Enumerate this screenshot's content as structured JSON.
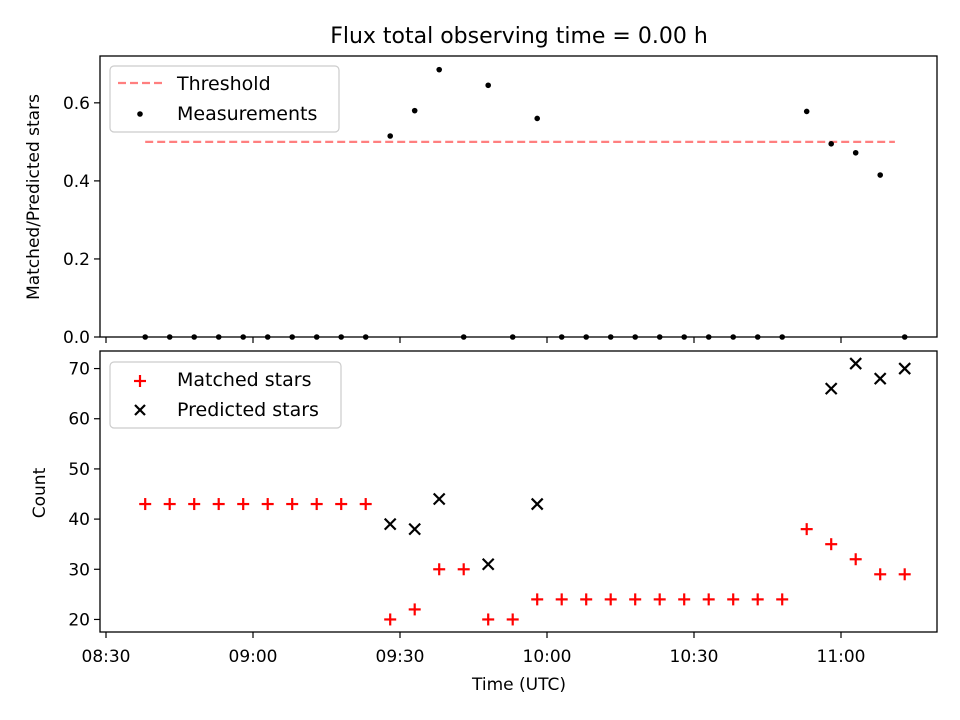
{
  "chart_data": [
    {
      "type": "scatter",
      "title": "Flux total observing time = 0.00 h",
      "ylabel": "Matched/Predicted stars",
      "xlabel": "",
      "ylim": [
        0,
        0.72
      ],
      "yticks": [
        0.0,
        0.2,
        0.4,
        0.6
      ],
      "ytick_labels": [
        "0.0",
        "0.2",
        "0.4",
        "0.6"
      ],
      "legend_position": "upper-left",
      "series": [
        {
          "name": "Threshold",
          "style": "dashed-line",
          "color": "#ff7f7f",
          "x": [
            "08:38",
            "11:11"
          ],
          "values": [
            0.5,
            0.5
          ]
        },
        {
          "name": "Measurements",
          "style": "dot",
          "color": "#000000",
          "x": [
            "08:38",
            "08:43",
            "08:48",
            "08:53",
            "08:58",
            "09:03",
            "09:08",
            "09:13",
            "09:18",
            "09:23",
            "09:28",
            "09:33",
            "09:38",
            "09:43",
            "09:48",
            "09:53",
            "09:58",
            "10:03",
            "10:08",
            "10:13",
            "10:18",
            "10:23",
            "10:28",
            "10:33",
            "10:38",
            "10:43",
            "10:48",
            "10:53",
            "10:58",
            "11:03",
            "11:08",
            "11:13"
          ],
          "values": [
            0,
            0,
            0,
            0,
            0,
            0,
            0,
            0,
            0,
            0,
            0.515,
            0.58,
            0.685,
            0,
            0.645,
            0,
            0.56,
            0,
            0,
            0,
            0,
            0,
            0,
            0,
            0,
            0,
            0,
            0.578,
            0.495,
            0.472,
            0.415,
            0
          ]
        }
      ]
    },
    {
      "type": "scatter",
      "title": "",
      "ylabel": "Count",
      "xlabel": "Time (UTC)",
      "ylim": [
        17.5,
        73.5
      ],
      "yticks": [
        20,
        30,
        40,
        50,
        60,
        70
      ],
      "ytick_labels": [
        "20",
        "30",
        "40",
        "50",
        "60",
        "70"
      ],
      "xticks": [
        "08:30",
        "09:00",
        "09:30",
        "10:00",
        "10:30",
        "11:00"
      ],
      "legend_position": "upper-left",
      "series": [
        {
          "name": "Matched stars",
          "style": "plus",
          "color": "#ff0000",
          "x": [
            "08:38",
            "08:43",
            "08:48",
            "08:53",
            "08:58",
            "09:03",
            "09:08",
            "09:13",
            "09:18",
            "09:23",
            "09:28",
            "09:33",
            "09:38",
            "09:43",
            "09:48",
            "09:53",
            "09:58",
            "10:03",
            "10:08",
            "10:13",
            "10:18",
            "10:23",
            "10:28",
            "10:33",
            "10:38",
            "10:43",
            "10:48",
            "10:53",
            "10:58",
            "11:03",
            "11:08",
            "11:13"
          ],
          "values": [
            43,
            43,
            43,
            43,
            43,
            43,
            43,
            43,
            43,
            43,
            20,
            22,
            30,
            30,
            20,
            20,
            24,
            24,
            24,
            24,
            24,
            24,
            24,
            24,
            24,
            24,
            24,
            38,
            35,
            32,
            29,
            29
          ]
        },
        {
          "name": "Predicted stars",
          "style": "x",
          "color": "#000000",
          "x": [
            "09:28",
            "09:33",
            "09:38",
            "09:48",
            "09:58",
            "10:58",
            "11:03",
            "11:08",
            "11:13"
          ],
          "values": [
            39,
            38,
            44,
            31,
            43,
            66,
            71,
            68,
            70
          ]
        }
      ]
    }
  ]
}
